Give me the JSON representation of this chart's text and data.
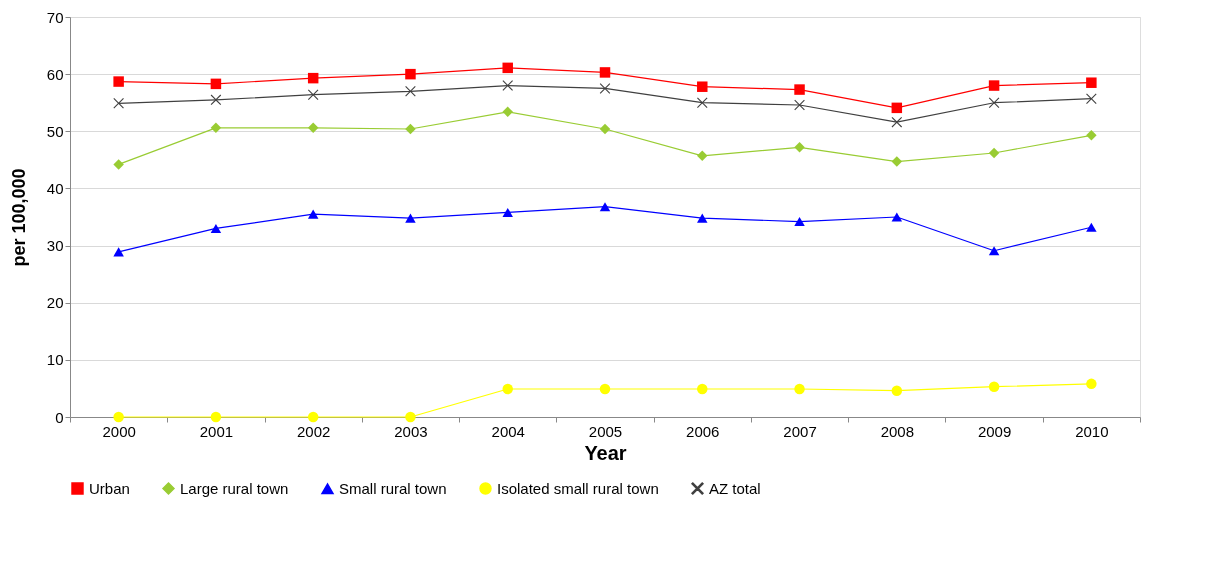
{
  "chart_data": {
    "type": "line",
    "xlabel": "Year",
    "ylabel": "per 100,000",
    "categories": [
      "2000",
      "2001",
      "2002",
      "2003",
      "2004",
      "2005",
      "2006",
      "2007",
      "2008",
      "2009",
      "2010"
    ],
    "ylim": [
      0,
      70
    ],
    "yticks": [
      0,
      10,
      20,
      30,
      40,
      50,
      60,
      70
    ],
    "grid": "y",
    "legend": "bottom",
    "series": [
      {
        "name": "Urban",
        "color": "#ff0000",
        "marker": "square",
        "values": [
          58.7,
          58.3,
          59.3,
          60.0,
          61.1,
          60.3,
          57.8,
          57.3,
          54.1,
          58.0,
          58.5
        ]
      },
      {
        "name": "Large rural town",
        "color": "#99cc33",
        "marker": "diamond",
        "values": [
          44.2,
          50.6,
          50.6,
          50.4,
          53.4,
          50.4,
          45.7,
          47.2,
          44.7,
          46.2,
          49.3
        ]
      },
      {
        "name": "Small rural town",
        "color": "#0000ff",
        "marker": "triangle",
        "values": [
          28.9,
          33.0,
          35.5,
          34.8,
          35.8,
          36.8,
          34.8,
          34.2,
          35.0,
          29.1,
          33.2
        ]
      },
      {
        "name": "Isolated small rural town",
        "color": "#ffff00",
        "marker": "circle",
        "values": [
          0,
          0,
          0,
          0,
          4.9,
          4.9,
          4.9,
          4.9,
          4.6,
          5.3,
          5.8
        ]
      },
      {
        "name": "AZ total",
        "color": "#404040",
        "marker": "cross",
        "values": [
          54.9,
          55.5,
          56.4,
          57.0,
          58.0,
          57.5,
          55.0,
          54.6,
          51.6,
          55.0,
          55.7
        ]
      }
    ]
  }
}
